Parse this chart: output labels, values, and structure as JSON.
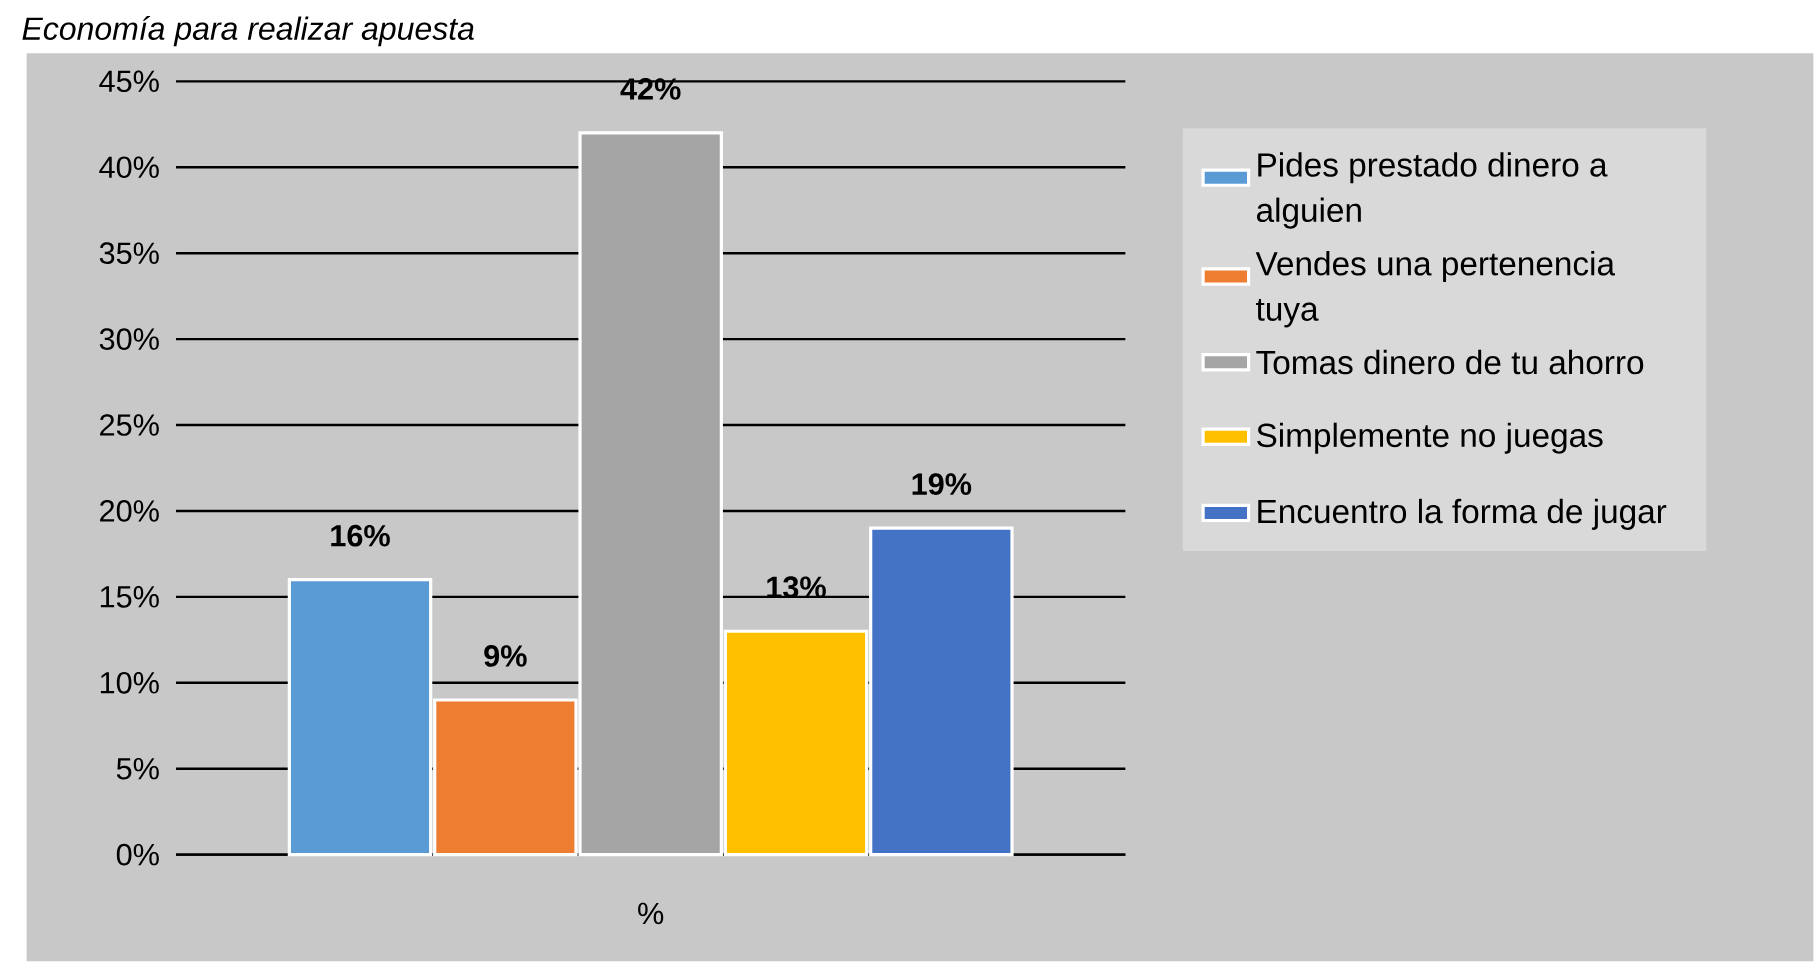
{
  "chart_data": {
    "type": "bar",
    "title": "Economía para realizar apuesta",
    "categories": [
      "%"
    ],
    "series": [
      {
        "name": "Pides prestado dinero a alguien",
        "color": "#5b9bd5",
        "values": [
          16
        ],
        "value_labels": [
          "16%"
        ]
      },
      {
        "name": "Vendes una pertenencia tuya",
        "color": "#ed7d31",
        "values": [
          9
        ],
        "value_labels": [
          "9%"
        ]
      },
      {
        "name": "Tomas dinero de tu ahorro",
        "color": "#a5a5a5",
        "values": [
          42
        ],
        "value_labels": [
          "42%"
        ]
      },
      {
        "name": "Simplemente no juegas",
        "color": "#ffc000",
        "values": [
          13
        ],
        "value_labels": [
          "13%"
        ]
      },
      {
        "name": "Encuentro la forma de jugar",
        "color": "#4472c4",
        "values": [
          19
        ],
        "value_labels": [
          "19%"
        ]
      }
    ],
    "ylim": [
      0,
      45
    ],
    "yticks": [
      {
        "value": 0,
        "label": "0%"
      },
      {
        "value": 5,
        "label": "5%"
      },
      {
        "value": 10,
        "label": "10%"
      },
      {
        "value": 15,
        "label": "15%"
      },
      {
        "value": 20,
        "label": "20%"
      },
      {
        "value": 25,
        "label": "25%"
      },
      {
        "value": 30,
        "label": "30%"
      },
      {
        "value": 35,
        "label": "35%"
      },
      {
        "value": 40,
        "label": "40%"
      },
      {
        "value": 45,
        "label": "45%"
      }
    ],
    "grid": "y",
    "legend": "right"
  }
}
